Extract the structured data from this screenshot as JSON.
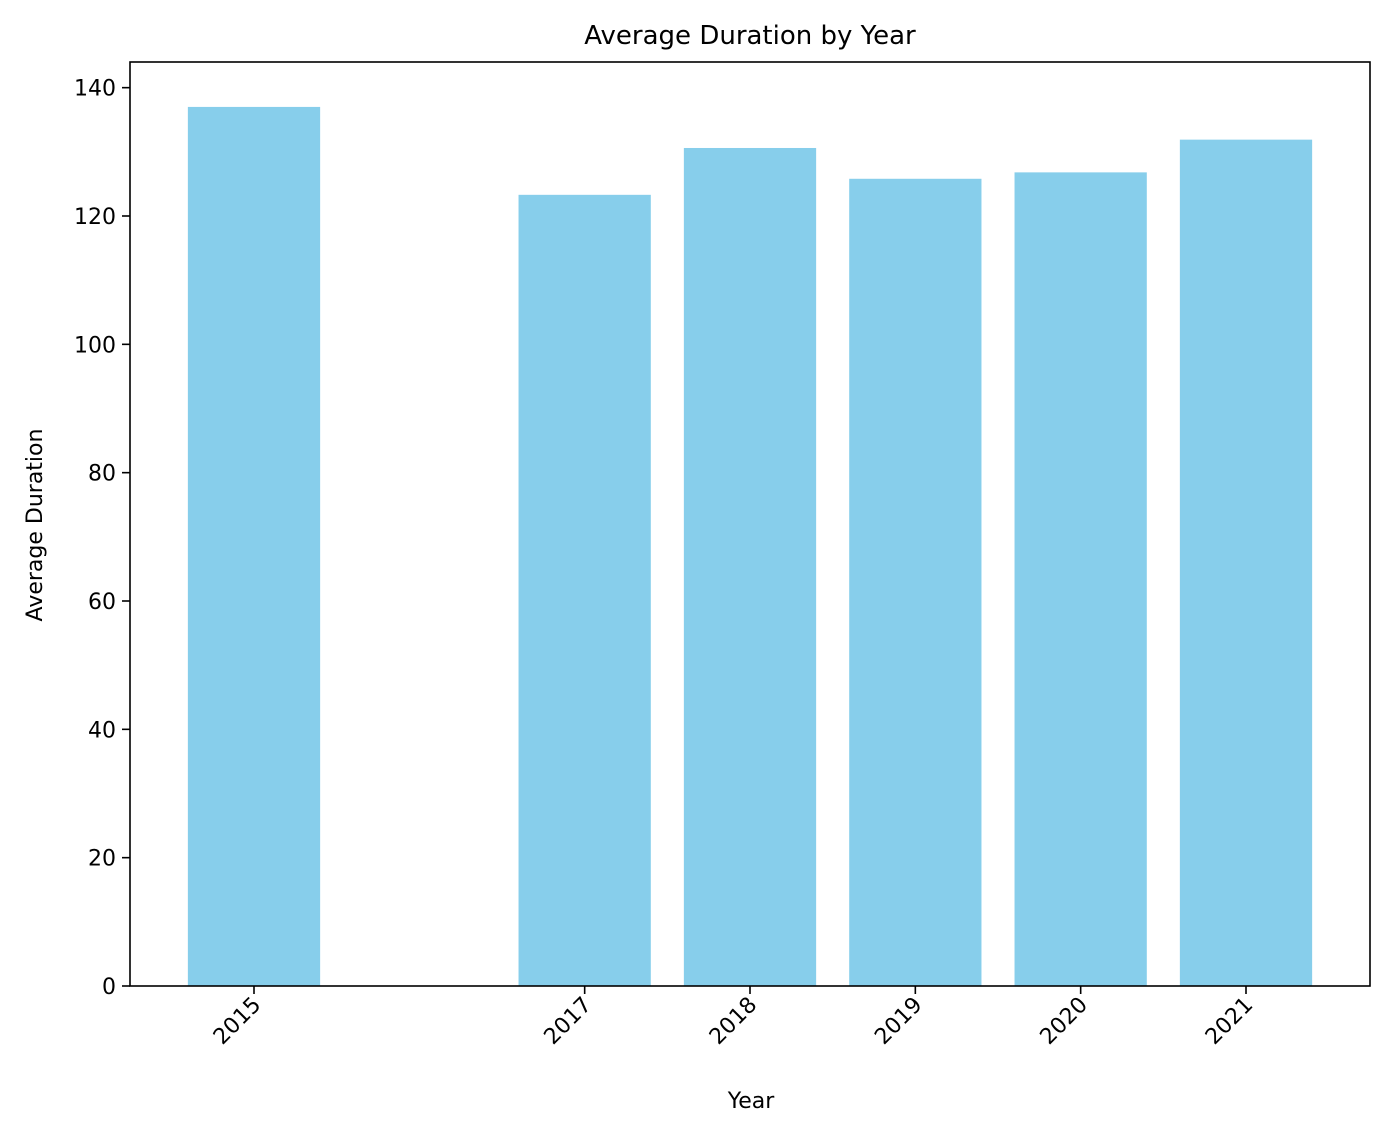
{
  "chart_data": {
    "type": "bar",
    "title": "Average Duration by Year",
    "xlabel": "Year",
    "ylabel": "Average Duration",
    "categories": [
      "2015",
      "2017",
      "2018",
      "2019",
      "2020",
      "2021"
    ],
    "x": [
      2015,
      2017,
      2018,
      2019,
      2020,
      2021
    ],
    "values": [
      137.0,
      123.3,
      130.6,
      125.8,
      126.8,
      131.9
    ],
    "xlim": [
      2014.25,
      2021.75
    ],
    "ylim": [
      0,
      144
    ],
    "yticks": [
      0,
      20,
      40,
      60,
      80,
      100,
      120,
      140
    ],
    "ytick_labels": [
      "0",
      "20",
      "40",
      "60",
      "80",
      "100",
      "120",
      "140"
    ],
    "xtick_rotation": 45,
    "bar_color": "#87CEEB",
    "grid": false,
    "legend": "none"
  }
}
